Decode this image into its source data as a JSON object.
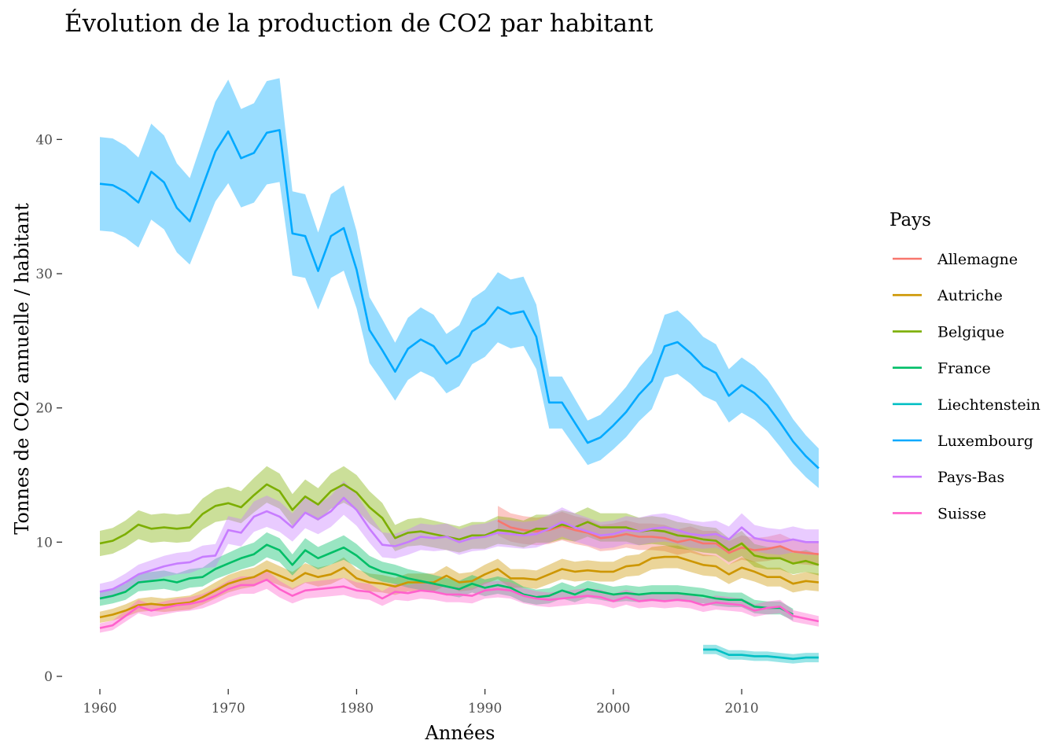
{
  "chart_data": {
    "type": "line",
    "title": "Évolution de la production de CO2 par habitant",
    "xlabel": "Années",
    "ylabel": "Tonnes de CO2 annuelle / habitant",
    "xlim": [
      1960,
      2016
    ],
    "ylim": [
      0,
      45
    ],
    "x_ticks": [
      1960,
      1970,
      1980,
      1990,
      2000,
      2010
    ],
    "y_ticks": [
      0,
      10,
      20,
      30,
      40
    ],
    "grid": false,
    "legend": {
      "title": "Pays",
      "position": "right"
    },
    "band": "shaded confidence ribbon around each line",
    "series": [
      {
        "name": "Allemagne",
        "color": "#F8766D",
        "x": [
          1991,
          1992,
          1993,
          1994,
          1995,
          1996,
          1997,
          1998,
          1999,
          2000,
          2001,
          2002,
          2003,
          2004,
          2005,
          2006,
          2007,
          2008,
          2009,
          2010,
          2011,
          2012,
          2013,
          2014,
          2015,
          2016
        ],
        "y": [
          11.6,
          11.1,
          10.9,
          10.8,
          10.9,
          11.2,
          10.9,
          10.7,
          10.3,
          10.4,
          10.6,
          10.4,
          10.4,
          10.3,
          10.0,
          10.2,
          9.9,
          9.9,
          9.2,
          9.6,
          9.4,
          9.5,
          9.7,
          9.3,
          9.2,
          9.1
        ]
      },
      {
        "name": "Autriche",
        "color": "#CD9600",
        "x": [
          1960,
          1961,
          1962,
          1963,
          1964,
          1965,
          1966,
          1967,
          1968,
          1969,
          1970,
          1971,
          1972,
          1973,
          1974,
          1975,
          1976,
          1977,
          1978,
          1979,
          1980,
          1981,
          1982,
          1983,
          1984,
          1985,
          1986,
          1987,
          1988,
          1989,
          1990,
          1991,
          1992,
          1993,
          1994,
          1995,
          1996,
          1997,
          1998,
          1999,
          2000,
          2001,
          2002,
          2003,
          2004,
          2005,
          2006,
          2007,
          2008,
          2009,
          2010,
          2011,
          2012,
          2013,
          2014,
          2015,
          2016
        ],
        "y": [
          4.4,
          4.6,
          4.9,
          5.3,
          5.4,
          5.3,
          5.4,
          5.5,
          5.9,
          6.4,
          6.9,
          7.2,
          7.4,
          7.9,
          7.5,
          7.1,
          7.7,
          7.4,
          7.6,
          8.1,
          7.3,
          7.0,
          6.9,
          6.7,
          7.0,
          7.0,
          7.0,
          7.5,
          7.0,
          7.1,
          7.6,
          8.0,
          7.3,
          7.3,
          7.2,
          7.6,
          8.0,
          7.8,
          7.9,
          7.8,
          7.8,
          8.2,
          8.3,
          8.8,
          8.9,
          8.9,
          8.6,
          8.3,
          8.2,
          7.6,
          8.1,
          7.8,
          7.4,
          7.4,
          6.9,
          7.1,
          7.0
        ]
      },
      {
        "name": "Belgique",
        "color": "#7CAE00",
        "x": [
          1960,
          1961,
          1962,
          1963,
          1964,
          1965,
          1966,
          1967,
          1968,
          1969,
          1970,
          1971,
          1972,
          1973,
          1974,
          1975,
          1976,
          1977,
          1978,
          1979,
          1980,
          1981,
          1982,
          1983,
          1984,
          1985,
          1986,
          1987,
          1988,
          1989,
          1990,
          1991,
          1992,
          1993,
          1994,
          1995,
          1996,
          1997,
          1998,
          1999,
          2000,
          2001,
          2002,
          2003,
          2004,
          2005,
          2006,
          2007,
          2008,
          2009,
          2010,
          2011,
          2012,
          2013,
          2014,
          2015,
          2016
        ],
        "y": [
          9.9,
          10.1,
          10.6,
          11.3,
          11.0,
          11.1,
          11.0,
          11.1,
          12.1,
          12.7,
          12.9,
          12.6,
          13.5,
          14.3,
          13.8,
          12.4,
          13.4,
          12.8,
          13.8,
          14.3,
          13.7,
          12.6,
          11.8,
          10.3,
          10.7,
          10.8,
          10.6,
          10.4,
          10.2,
          10.5,
          10.5,
          10.9,
          10.8,
          10.6,
          11.0,
          11.0,
          11.3,
          11.1,
          11.5,
          11.1,
          11.1,
          11.1,
          10.8,
          10.9,
          10.8,
          10.5,
          10.4,
          10.2,
          10.1,
          9.4,
          9.9,
          9.0,
          8.8,
          8.8,
          8.4,
          8.6,
          8.3
        ]
      },
      {
        "name": "France",
        "color": "#00BE67",
        "x": [
          1960,
          1961,
          1962,
          1963,
          1964,
          1965,
          1966,
          1967,
          1968,
          1969,
          1970,
          1971,
          1972,
          1973,
          1974,
          1975,
          1976,
          1977,
          1978,
          1979,
          1980,
          1981,
          1982,
          1983,
          1984,
          1985,
          1986,
          1987,
          1988,
          1989,
          1990,
          1991,
          1992,
          1993,
          1994,
          1995,
          1996,
          1997,
          1998,
          1999,
          2000,
          2001,
          2002,
          2003,
          2004,
          2005,
          2006,
          2007,
          2008,
          2009,
          2010,
          2011,
          2012,
          2013,
          2014
        ],
        "y": [
          5.8,
          6.0,
          6.3,
          7.0,
          7.1,
          7.2,
          7.0,
          7.3,
          7.4,
          8.0,
          8.4,
          8.8,
          9.1,
          9.8,
          9.4,
          8.3,
          9.4,
          8.8,
          9.2,
          9.6,
          9.0,
          8.2,
          7.8,
          7.6,
          7.3,
          7.1,
          6.9,
          6.7,
          6.5,
          6.9,
          6.6,
          6.8,
          6.6,
          6.1,
          5.9,
          6.0,
          6.4,
          6.1,
          6.5,
          6.3,
          6.1,
          6.2,
          6.1,
          6.2,
          6.2,
          6.2,
          6.1,
          6.0,
          5.8,
          5.7,
          5.7,
          5.2,
          5.1,
          5.1,
          4.6
        ]
      },
      {
        "name": "Liechtenstein",
        "color": "#00BFC4",
        "x": [
          2007,
          2008,
          2009,
          2010,
          2011,
          2012,
          2013,
          2014,
          2015,
          2016
        ],
        "y": [
          2.0,
          2.0,
          1.6,
          1.6,
          1.5,
          1.5,
          1.4,
          1.3,
          1.4,
          1.4
        ]
      },
      {
        "name": "Luxembourg",
        "color": "#00A9FF",
        "x": [
          1960,
          1961,
          1962,
          1963,
          1964,
          1965,
          1966,
          1967,
          1968,
          1969,
          1970,
          1971,
          1972,
          1973,
          1974,
          1975,
          1976,
          1977,
          1978,
          1979,
          1980,
          1981,
          1982,
          1983,
          1984,
          1985,
          1986,
          1987,
          1988,
          1989,
          1990,
          1991,
          1992,
          1993,
          1994,
          1995,
          1996,
          1997,
          1998,
          1999,
          2000,
          2001,
          2002,
          2003,
          2004,
          2005,
          2006,
          2007,
          2008,
          2009,
          2010,
          2011,
          2012,
          2013,
          2014,
          2015,
          2016
        ],
        "y": [
          36.7,
          36.6,
          36.1,
          35.3,
          37.6,
          36.8,
          34.9,
          33.9,
          36.5,
          39.1,
          40.6,
          38.6,
          39.0,
          40.5,
          40.7,
          33.0,
          32.8,
          30.2,
          32.8,
          33.4,
          30.3,
          25.8,
          24.3,
          22.7,
          24.4,
          25.1,
          24.6,
          23.3,
          23.9,
          25.7,
          26.3,
          27.5,
          27.0,
          27.2,
          25.3,
          20.4,
          20.4,
          18.9,
          17.4,
          17.8,
          18.7,
          19.7,
          21.0,
          22.0,
          24.6,
          24.9,
          24.1,
          23.1,
          22.6,
          20.9,
          21.7,
          21.1,
          20.2,
          18.9,
          17.5,
          16.4,
          15.5
        ]
      },
      {
        "name": "Pays-Bas",
        "color": "#C77CFF",
        "x": [
          1960,
          1961,
          1962,
          1963,
          1964,
          1965,
          1966,
          1967,
          1968,
          1969,
          1970,
          1971,
          1972,
          1973,
          1974,
          1975,
          1976,
          1977,
          1978,
          1979,
          1980,
          1981,
          1982,
          1983,
          1984,
          1985,
          1986,
          1987,
          1988,
          1989,
          1990,
          1991,
          1992,
          1993,
          1994,
          1995,
          1996,
          1997,
          1998,
          1999,
          2000,
          2001,
          2002,
          2003,
          2004,
          2005,
          2006,
          2007,
          2008,
          2009,
          2010,
          2011,
          2012,
          2013,
          2014,
          2015,
          2016
        ],
        "y": [
          6.3,
          6.5,
          7.0,
          7.6,
          7.9,
          8.2,
          8.4,
          8.5,
          8.9,
          9.0,
          10.9,
          10.7,
          11.9,
          12.3,
          11.9,
          11.1,
          12.2,
          11.7,
          12.3,
          13.3,
          12.4,
          11.0,
          9.8,
          9.7,
          10.0,
          10.4,
          10.3,
          10.4,
          10.0,
          10.3,
          10.4,
          10.7,
          10.6,
          10.5,
          10.6,
          11.0,
          11.5,
          11.1,
          10.8,
          10.5,
          10.6,
          10.9,
          10.8,
          11.0,
          11.1,
          10.9,
          10.6,
          10.5,
          10.6,
          10.2,
          11.1,
          10.3,
          10.1,
          10.0,
          10.2,
          10.0,
          10.0
        ]
      },
      {
        "name": "Suisse",
        "color": "#FF61CC",
        "x": [
          1960,
          1961,
          1962,
          1963,
          1964,
          1965,
          1966,
          1967,
          1968,
          1969,
          1970,
          1971,
          1972,
          1973,
          1974,
          1975,
          1976,
          1977,
          1978,
          1979,
          1980,
          1981,
          1982,
          1983,
          1984,
          1985,
          1986,
          1987,
          1988,
          1989,
          1990,
          1991,
          1992,
          1993,
          1994,
          1995,
          1996,
          1997,
          1998,
          1999,
          2000,
          2001,
          2002,
          2003,
          2004,
          2005,
          2006,
          2007,
          2008,
          2009,
          2010,
          2011,
          2012,
          2013,
          2014,
          2015,
          2016
        ],
        "y": [
          3.6,
          3.8,
          4.5,
          5.2,
          4.9,
          5.1,
          5.3,
          5.4,
          5.6,
          6.0,
          6.5,
          6.8,
          6.8,
          7.2,
          6.5,
          6.0,
          6.4,
          6.5,
          6.6,
          6.7,
          6.4,
          6.3,
          5.8,
          6.3,
          6.2,
          6.4,
          6.3,
          6.1,
          6.1,
          6.0,
          6.4,
          6.5,
          6.4,
          6.0,
          5.8,
          5.7,
          5.8,
          5.9,
          6.0,
          5.9,
          5.6,
          5.9,
          5.6,
          5.7,
          5.6,
          5.7,
          5.6,
          5.3,
          5.5,
          5.4,
          5.3,
          4.9,
          5.1,
          5.2,
          4.5,
          4.3,
          4.1
        ]
      }
    ]
  }
}
